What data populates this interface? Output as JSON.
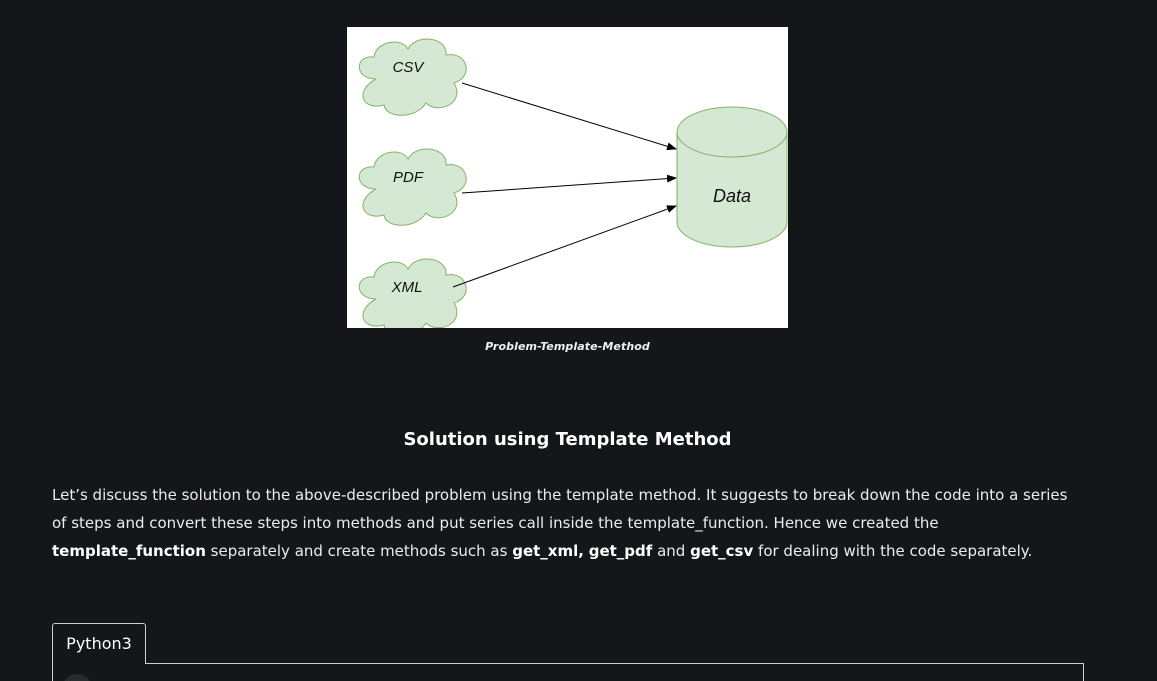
{
  "diagram": {
    "sources": [
      "CSV",
      "PDF",
      "XML"
    ],
    "target": "Data",
    "colors": {
      "shape_fill": "#d5e8d4",
      "shape_stroke": "#82b366",
      "arrow": "#000000",
      "background": "#ffffff"
    }
  },
  "caption": "Problem-Template-Method",
  "heading": "Solution using Template Method",
  "paragraph": {
    "text_1": "Let’s discuss the solution to the above-described problem using the template method. It suggests to break down the code into a series of steps and convert these steps into methods and put series call inside the template_function. Hence we created the ",
    "bold_template_function": "template_function",
    "text_2": " separately and create methods such as ",
    "bold_get_xml": "get_xml,",
    "text_3": " ",
    "bold_get_pdf": "get_pdf",
    "text_4": " and ",
    "bold_get_csv": "get_csv",
    "text_5": " for dealing with the code separately."
  },
  "code_tabs": [
    {
      "label": "Python3",
      "active": true
    }
  ],
  "theme": {
    "background": "#151619",
    "text": "#ececec",
    "border": "#cfcfcf"
  }
}
